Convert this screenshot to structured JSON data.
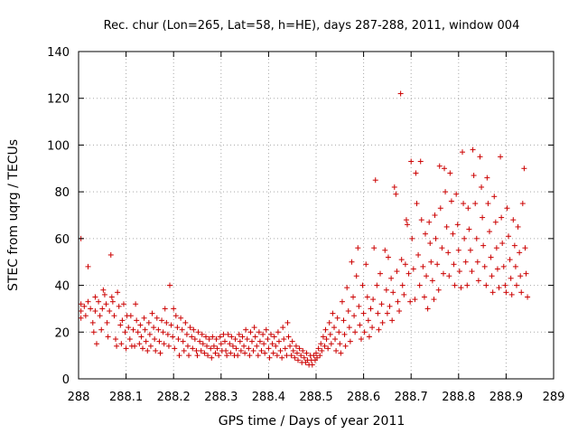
{
  "chart_data": {
    "type": "scatter",
    "title": "Rec. chur (Lon=265, Lat=58, h=HE), days 287-288, 2011, window 004",
    "xlabel": "GPS time / Days of year 2011",
    "ylabel": "STEC from uqrg / TECUs",
    "xlim": [
      288,
      289
    ],
    "ylim": [
      0,
      140
    ],
    "xticks": [
      "288",
      "288.1",
      "288.2",
      "288.3",
      "288.4",
      "288.5",
      "288.6",
      "288.7",
      "288.8",
      "288.9",
      "289"
    ],
    "yticks": [
      "0",
      "20",
      "40",
      "60",
      "80",
      "100",
      "120",
      "140"
    ],
    "grid": true,
    "marker": "+",
    "color": "#cc0000",
    "points": [
      [
        288.005,
        60
      ],
      [
        288.005,
        32
      ],
      [
        288.005,
        29
      ],
      [
        288.005,
        26
      ],
      [
        288.012,
        31
      ],
      [
        288.015,
        27
      ],
      [
        288.02,
        48
      ],
      [
        288.02,
        33
      ],
      [
        288.025,
        30
      ],
      [
        288.03,
        24
      ],
      [
        288.032,
        20
      ],
      [
        288.035,
        35
      ],
      [
        288.035,
        29
      ],
      [
        288.038,
        15
      ],
      [
        288.042,
        33
      ],
      [
        288.045,
        27
      ],
      [
        288.048,
        21
      ],
      [
        288.05,
        30
      ],
      [
        288.052,
        38
      ],
      [
        288.055,
        36
      ],
      [
        288.058,
        32
      ],
      [
        288.06,
        24
      ],
      [
        288.062,
        18
      ],
      [
        288.065,
        29
      ],
      [
        288.068,
        53
      ],
      [
        288.07,
        35
      ],
      [
        288.072,
        33
      ],
      [
        288.075,
        27
      ],
      [
        288.078,
        17
      ],
      [
        288.08,
        14
      ],
      [
        288.082,
        37
      ],
      [
        288.085,
        31
      ],
      [
        288.088,
        23
      ],
      [
        288.09,
        15
      ],
      [
        288.092,
        25
      ],
      [
        288.095,
        32
      ],
      [
        288.098,
        20
      ],
      [
        288.1,
        13
      ],
      [
        288.102,
        27
      ],
      [
        288.105,
        22
      ],
      [
        288.108,
        17
      ],
      [
        288.11,
        27
      ],
      [
        288.112,
        14
      ],
      [
        288.115,
        21
      ],
      [
        288.118,
        14
      ],
      [
        288.12,
        32
      ],
      [
        288.122,
        25
      ],
      [
        288.125,
        20
      ],
      [
        288.128,
        15
      ],
      [
        288.13,
        23
      ],
      [
        288.132,
        18
      ],
      [
        288.135,
        13
      ],
      [
        288.138,
        26
      ],
      [
        288.14,
        21
      ],
      [
        288.142,
        16
      ],
      [
        288.145,
        12
      ],
      [
        288.148,
        24
      ],
      [
        288.15,
        19
      ],
      [
        288.152,
        14
      ],
      [
        288.155,
        28
      ],
      [
        288.158,
        22
      ],
      [
        288.16,
        17
      ],
      [
        288.162,
        12
      ],
      [
        288.165,
        26
      ],
      [
        288.168,
        21
      ],
      [
        288.17,
        16
      ],
      [
        288.172,
        11
      ],
      [
        288.175,
        25
      ],
      [
        288.178,
        20
      ],
      [
        288.18,
        15
      ],
      [
        288.182,
        30
      ],
      [
        288.185,
        24
      ],
      [
        288.188,
        19
      ],
      [
        288.19,
        14
      ],
      [
        288.192,
        40
      ],
      [
        288.195,
        23
      ],
      [
        288.198,
        18
      ],
      [
        288.2,
        30
      ],
      [
        288.202,
        13
      ],
      [
        288.205,
        27
      ],
      [
        288.208,
        22
      ],
      [
        288.21,
        17
      ],
      [
        288.212,
        10
      ],
      [
        288.215,
        26
      ],
      [
        288.218,
        21
      ],
      [
        288.22,
        16
      ],
      [
        288.222,
        12
      ],
      [
        288.225,
        24
      ],
      [
        288.228,
        19
      ],
      [
        288.23,
        14
      ],
      [
        288.232,
        10
      ],
      [
        288.235,
        22
      ],
      [
        288.238,
        18
      ],
      [
        288.24,
        13
      ],
      [
        288.242,
        21
      ],
      [
        288.245,
        17
      ],
      [
        288.248,
        12
      ],
      [
        288.25,
        10
      ],
      [
        288.252,
        20
      ],
      [
        288.255,
        16
      ],
      [
        288.258,
        12
      ],
      [
        288.26,
        19
      ],
      [
        288.262,
        15
      ],
      [
        288.265,
        11
      ],
      [
        288.268,
        18
      ],
      [
        288.27,
        14
      ],
      [
        288.272,
        10
      ],
      [
        288.275,
        17
      ],
      [
        288.278,
        13
      ],
      [
        288.28,
        9
      ],
      [
        288.282,
        18
      ],
      [
        288.285,
        14
      ],
      [
        288.288,
        11
      ],
      [
        288.29,
        17
      ],
      [
        288.292,
        13
      ],
      [
        288.295,
        10
      ],
      [
        288.298,
        18
      ],
      [
        288.3,
        15
      ],
      [
        288.302,
        12
      ],
      [
        288.305,
        19
      ],
      [
        288.308,
        16
      ],
      [
        288.31,
        12
      ],
      [
        288.312,
        10
      ],
      [
        288.315,
        19
      ],
      [
        288.318,
        15
      ],
      [
        288.32,
        11
      ],
      [
        288.322,
        18
      ],
      [
        288.325,
        14
      ],
      [
        288.328,
        10
      ],
      [
        288.33,
        17
      ],
      [
        288.332,
        13
      ],
      [
        288.335,
        10
      ],
      [
        288.338,
        19
      ],
      [
        288.34,
        16
      ],
      [
        288.342,
        12
      ],
      [
        288.345,
        18
      ],
      [
        288.348,
        14
      ],
      [
        288.35,
        11
      ],
      [
        288.352,
        21
      ],
      [
        288.355,
        17
      ],
      [
        288.358,
        13
      ],
      [
        288.36,
        10
      ],
      [
        288.362,
        20
      ],
      [
        288.365,
        16
      ],
      [
        288.368,
        12
      ],
      [
        288.37,
        22
      ],
      [
        288.372,
        18
      ],
      [
        288.375,
        14
      ],
      [
        288.378,
        10
      ],
      [
        288.38,
        20
      ],
      [
        288.382,
        16
      ],
      [
        288.385,
        12
      ],
      [
        288.388,
        19
      ],
      [
        288.39,
        15
      ],
      [
        288.392,
        11
      ],
      [
        288.395,
        21
      ],
      [
        288.398,
        17
      ],
      [
        288.4,
        13
      ],
      [
        288.402,
        9
      ],
      [
        288.405,
        19
      ],
      [
        288.408,
        15
      ],
      [
        288.41,
        11
      ],
      [
        288.412,
        18
      ],
      [
        288.415,
        14
      ],
      [
        288.418,
        10
      ],
      [
        288.42,
        20
      ],
      [
        288.422,
        16
      ],
      [
        288.425,
        12
      ],
      [
        288.428,
        9
      ],
      [
        288.43,
        22
      ],
      [
        288.432,
        17
      ],
      [
        288.435,
        13
      ],
      [
        288.438,
        10
      ],
      [
        288.44,
        24
      ],
      [
        288.442,
        18
      ],
      [
        288.445,
        14
      ],
      [
        288.448,
        10
      ],
      [
        288.45,
        16
      ],
      [
        288.452,
        12
      ],
      [
        288.455,
        9
      ],
      [
        288.458,
        14
      ],
      [
        288.46,
        11
      ],
      [
        288.462,
        8
      ],
      [
        288.465,
        13
      ],
      [
        288.468,
        10
      ],
      [
        288.47,
        7
      ],
      [
        288.472,
        12
      ],
      [
        288.475,
        9
      ],
      [
        288.478,
        7
      ],
      [
        288.48,
        11
      ],
      [
        288.482,
        8
      ],
      [
        288.485,
        6
      ],
      [
        288.488,
        10
      ],
      [
        288.49,
        8
      ],
      [
        288.492,
        6
      ],
      [
        288.495,
        10
      ],
      [
        288.498,
        8
      ],
      [
        288.5,
        11
      ],
      [
        288.502,
        9
      ],
      [
        288.505,
        13
      ],
      [
        288.508,
        10
      ],
      [
        288.51,
        15
      ],
      [
        288.512,
        12
      ],
      [
        288.515,
        18
      ],
      [
        288.518,
        14
      ],
      [
        288.52,
        21
      ],
      [
        288.522,
        17
      ],
      [
        288.525,
        13
      ],
      [
        288.528,
        24
      ],
      [
        288.53,
        19
      ],
      [
        288.532,
        15
      ],
      [
        288.535,
        28
      ],
      [
        288.538,
        22
      ],
      [
        288.54,
        17
      ],
      [
        288.542,
        12
      ],
      [
        288.545,
        26
      ],
      [
        288.548,
        20
      ],
      [
        288.55,
        15
      ],
      [
        288.552,
        11
      ],
      [
        288.555,
        33
      ],
      [
        288.558,
        25
      ],
      [
        288.56,
        19
      ],
      [
        288.562,
        14
      ],
      [
        288.565,
        39
      ],
      [
        288.568,
        29
      ],
      [
        288.57,
        22
      ],
      [
        288.572,
        16
      ],
      [
        288.575,
        50
      ],
      [
        288.578,
        35
      ],
      [
        288.58,
        27
      ],
      [
        288.582,
        20
      ],
      [
        288.585,
        44
      ],
      [
        288.588,
        56
      ],
      [
        288.59,
        31
      ],
      [
        288.592,
        23
      ],
      [
        288.595,
        17
      ],
      [
        288.598,
        40
      ],
      [
        288.6,
        28
      ],
      [
        288.602,
        20
      ],
      [
        288.605,
        49
      ],
      [
        288.608,
        35
      ],
      [
        288.61,
        25
      ],
      [
        288.612,
        18
      ],
      [
        288.615,
        30
      ],
      [
        288.618,
        22
      ],
      [
        288.62,
        34
      ],
      [
        288.622,
        56
      ],
      [
        288.625,
        85
      ],
      [
        288.628,
        40
      ],
      [
        288.63,
        28
      ],
      [
        288.632,
        21
      ],
      [
        288.635,
        45
      ],
      [
        288.638,
        32
      ],
      [
        288.64,
        24
      ],
      [
        288.645,
        55
      ],
      [
        288.648,
        38
      ],
      [
        288.65,
        28
      ],
      [
        288.652,
        52
      ],
      [
        288.655,
        31
      ],
      [
        288.658,
        43
      ],
      [
        288.66,
        25
      ],
      [
        288.662,
        37
      ],
      [
        288.665,
        82
      ],
      [
        288.668,
        79
      ],
      [
        288.67,
        46
      ],
      [
        288.672,
        33
      ],
      [
        288.675,
        29
      ],
      [
        288.678,
        122
      ],
      [
        288.68,
        51
      ],
      [
        288.682,
        40
      ],
      [
        288.685,
        36
      ],
      [
        288.688,
        49
      ],
      [
        288.69,
        68
      ],
      [
        288.692,
        66
      ],
      [
        288.695,
        45
      ],
      [
        288.698,
        33
      ],
      [
        288.7,
        93
      ],
      [
        288.702,
        60
      ],
      [
        288.705,
        47
      ],
      [
        288.708,
        34
      ],
      [
        288.71,
        88
      ],
      [
        288.712,
        75
      ],
      [
        288.715,
        53
      ],
      [
        288.718,
        40
      ],
      [
        288.72,
        93
      ],
      [
        288.722,
        68
      ],
      [
        288.725,
        48
      ],
      [
        288.728,
        35
      ],
      [
        288.73,
        62
      ],
      [
        288.732,
        44
      ],
      [
        288.735,
        30
      ],
      [
        288.738,
        67
      ],
      [
        288.74,
        58
      ],
      [
        288.742,
        50
      ],
      [
        288.745,
        42
      ],
      [
        288.748,
        34
      ],
      [
        288.75,
        70
      ],
      [
        288.752,
        60
      ],
      [
        288.755,
        49
      ],
      [
        288.758,
        38
      ],
      [
        288.76,
        91
      ],
      [
        288.762,
        73
      ],
      [
        288.765,
        56
      ],
      [
        288.768,
        45
      ],
      [
        288.77,
        90
      ],
      [
        288.772,
        80
      ],
      [
        288.775,
        65
      ],
      [
        288.778,
        54
      ],
      [
        288.78,
        44
      ],
      [
        288.782,
        88
      ],
      [
        288.785,
        76
      ],
      [
        288.788,
        62
      ],
      [
        288.79,
        49
      ],
      [
        288.792,
        40
      ],
      [
        288.795,
        79
      ],
      [
        288.798,
        66
      ],
      [
        288.8,
        55
      ],
      [
        288.802,
        46
      ],
      [
        288.805,
        39
      ],
      [
        288.808,
        97
      ],
      [
        288.81,
        75
      ],
      [
        288.812,
        60
      ],
      [
        288.815,
        50
      ],
      [
        288.818,
        40
      ],
      [
        288.82,
        73
      ],
      [
        288.822,
        64
      ],
      [
        288.825,
        55
      ],
      [
        288.828,
        46
      ],
      [
        288.83,
        98
      ],
      [
        288.832,
        87
      ],
      [
        288.835,
        75
      ],
      [
        288.838,
        60
      ],
      [
        288.84,
        50
      ],
      [
        288.842,
        42
      ],
      [
        288.845,
        95
      ],
      [
        288.848,
        82
      ],
      [
        288.85,
        69
      ],
      [
        288.852,
        57
      ],
      [
        288.855,
        48
      ],
      [
        288.858,
        40
      ],
      [
        288.86,
        86
      ],
      [
        288.862,
        75
      ],
      [
        288.865,
        63
      ],
      [
        288.868,
        52
      ],
      [
        288.87,
        44
      ],
      [
        288.872,
        37
      ],
      [
        288.875,
        78
      ],
      [
        288.878,
        67
      ],
      [
        288.88,
        56
      ],
      [
        288.882,
        47
      ],
      [
        288.885,
        39
      ],
      [
        288.888,
        95
      ],
      [
        288.89,
        69
      ],
      [
        288.892,
        58
      ],
      [
        288.895,
        48
      ],
      [
        288.898,
        40
      ],
      [
        288.9,
        37
      ],
      [
        288.902,
        73
      ],
      [
        288.905,
        61
      ],
      [
        288.908,
        51
      ],
      [
        288.91,
        43
      ],
      [
        288.912,
        36
      ],
      [
        288.915,
        68
      ],
      [
        288.918,
        57
      ],
      [
        288.92,
        48
      ],
      [
        288.922,
        40
      ],
      [
        288.925,
        65
      ],
      [
        288.928,
        54
      ],
      [
        288.93,
        44
      ],
      [
        288.932,
        37
      ],
      [
        288.935,
        75
      ],
      [
        288.938,
        90
      ],
      [
        288.94,
        56
      ],
      [
        288.942,
        45
      ],
      [
        288.945,
        35
      ]
    ]
  }
}
